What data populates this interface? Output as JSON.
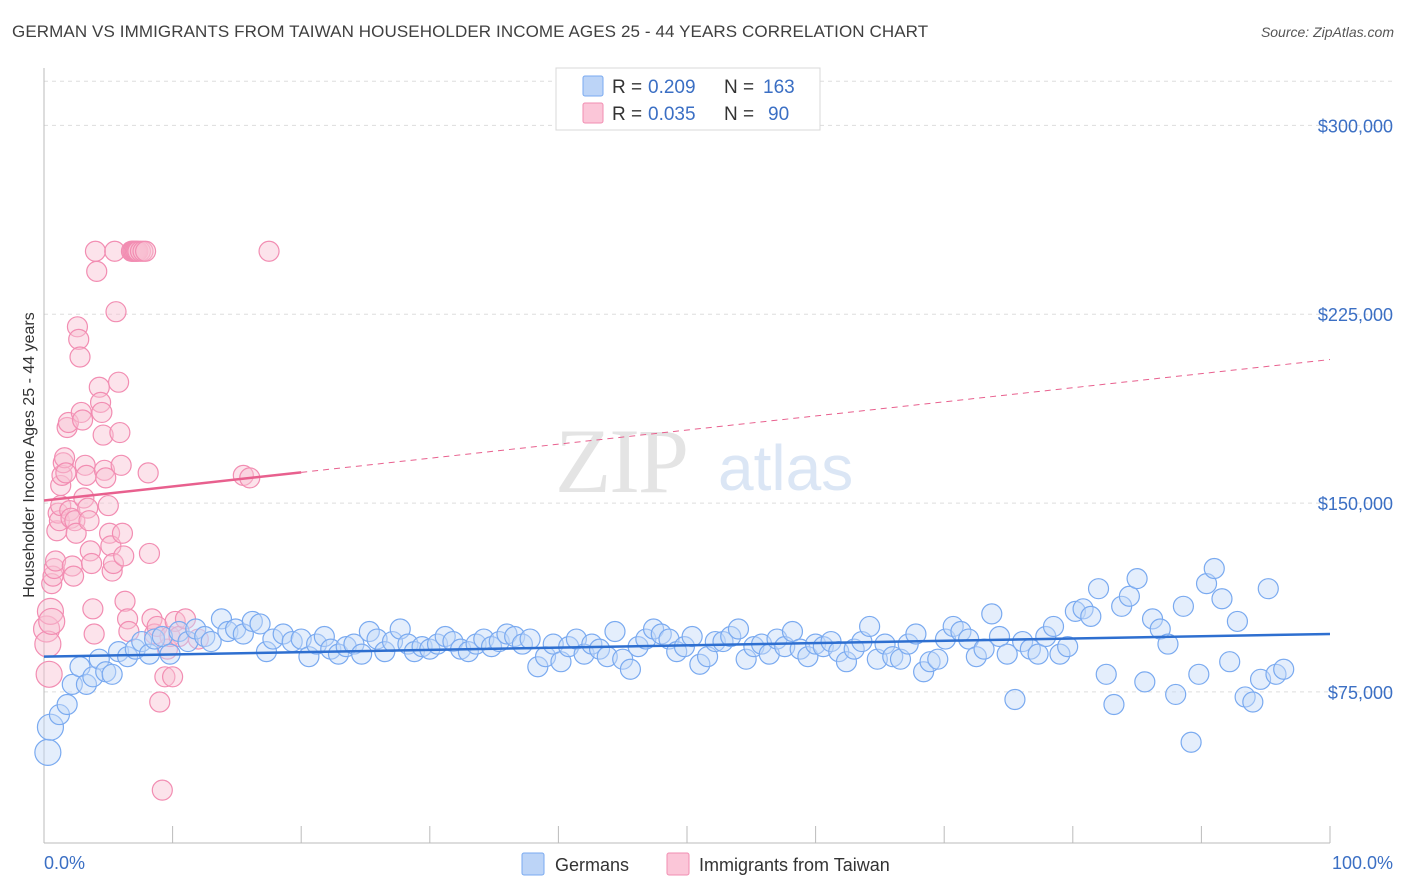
{
  "header": {
    "title": "GERMAN VS IMMIGRANTS FROM TAIWAN HOUSEHOLDER INCOME AGES 25 - 44 YEARS CORRELATION CHART",
    "source": "Source: ZipAtlas.com"
  },
  "colors": {
    "blue": "#7aaaf0",
    "blue_line": "#2e6fd0",
    "pink": "#f28db2",
    "pink_line": "#e8608e",
    "grid": "#dddddd",
    "tick_text": "#3b6fc4"
  },
  "watermark": {
    "zip": "ZIP",
    "atlas": "atlas"
  },
  "legend": {
    "r_label": "R =",
    "n_label": "N =",
    "blue": {
      "r": "0.209",
      "n": "163"
    },
    "pink": {
      "r": "0.035",
      "n": "90"
    }
  },
  "chart_data": {
    "type": "scatter",
    "title": "GERMAN VS IMMIGRANTS FROM TAIWAN HOUSEHOLDER INCOME AGES 25 - 44 YEARS CORRELATION CHART",
    "xlabel": "",
    "ylabel": "Householder Income Ages 25 - 44 years",
    "xlim": [
      0,
      100
    ],
    "ylim": [
      15000,
      320000
    ],
    "x_tick_labels": [
      "0.0%",
      "100.0%"
    ],
    "y_ticks": [
      75000,
      150000,
      225000,
      300000
    ],
    "y_tick_labels": [
      "$75,000",
      "$150,000",
      "$225,000",
      "$300,000"
    ],
    "grid": true,
    "legend_position": "top-center",
    "series": [
      {
        "name": "Germans",
        "color": "#7aaaf0",
        "trend": {
          "x": [
            0,
            100
          ],
          "y": [
            89000,
            98000
          ],
          "style": "solid"
        },
        "points": [
          [
            0.3,
            51000
          ],
          [
            0.5,
            61000
          ],
          [
            1.2,
            66000
          ],
          [
            1.8,
            70000
          ],
          [
            2.2,
            78000
          ],
          [
            2.8,
            85000
          ],
          [
            3.3,
            78000
          ],
          [
            3.8,
            81000
          ],
          [
            4.3,
            88000
          ],
          [
            4.8,
            83000
          ],
          [
            5.3,
            82000
          ],
          [
            5.8,
            91000
          ],
          [
            6.5,
            89000
          ],
          [
            7.1,
            92000
          ],
          [
            7.6,
            95000
          ],
          [
            8.2,
            90000
          ],
          [
            8.6,
            96000
          ],
          [
            9.2,
            97000
          ],
          [
            9.8,
            90000
          ],
          [
            10.5,
            99000
          ],
          [
            11.2,
            95000
          ],
          [
            11.8,
            100000
          ],
          [
            12.5,
            97000
          ],
          [
            13.0,
            95000
          ],
          [
            13.8,
            104000
          ],
          [
            14.3,
            99000
          ],
          [
            14.9,
            100000
          ],
          [
            15.5,
            98000
          ],
          [
            16.2,
            103000
          ],
          [
            16.8,
            102000
          ],
          [
            17.3,
            91000
          ],
          [
            17.8,
            96000
          ],
          [
            18.6,
            98000
          ],
          [
            19.3,
            95000
          ],
          [
            20.0,
            96000
          ],
          [
            20.6,
            89000
          ],
          [
            21.2,
            94000
          ],
          [
            21.8,
            97000
          ],
          [
            22.3,
            92000
          ],
          [
            22.9,
            90000
          ],
          [
            23.5,
            93000
          ],
          [
            24.1,
            94000
          ],
          [
            24.7,
            90000
          ],
          [
            25.3,
            99000
          ],
          [
            25.9,
            96000
          ],
          [
            26.5,
            91000
          ],
          [
            27.1,
            95000
          ],
          [
            27.7,
            100000
          ],
          [
            28.3,
            94000
          ],
          [
            28.8,
            91000
          ],
          [
            29.4,
            93000
          ],
          [
            30.0,
            92000
          ],
          [
            30.6,
            94000
          ],
          [
            31.2,
            97000
          ],
          [
            31.8,
            95000
          ],
          [
            32.4,
            92000
          ],
          [
            33.0,
            91000
          ],
          [
            33.6,
            94000
          ],
          [
            34.2,
            96000
          ],
          [
            34.8,
            93000
          ],
          [
            35.4,
            95000
          ],
          [
            36.0,
            98000
          ],
          [
            36.6,
            97000
          ],
          [
            37.2,
            94000
          ],
          [
            37.8,
            96000
          ],
          [
            38.4,
            85000
          ],
          [
            39.0,
            89000
          ],
          [
            39.6,
            94000
          ],
          [
            40.2,
            87000
          ],
          [
            40.8,
            93000
          ],
          [
            41.4,
            96000
          ],
          [
            42.0,
            90000
          ],
          [
            42.6,
            94000
          ],
          [
            43.2,
            92000
          ],
          [
            43.8,
            89000
          ],
          [
            44.4,
            99000
          ],
          [
            45.0,
            88000
          ],
          [
            45.6,
            84000
          ],
          [
            46.2,
            93000
          ],
          [
            46.8,
            96000
          ],
          [
            47.4,
            100000
          ],
          [
            48.0,
            98000
          ],
          [
            48.6,
            96000
          ],
          [
            49.2,
            91000
          ],
          [
            49.8,
            93000
          ],
          [
            50.4,
            97000
          ],
          [
            51.0,
            86000
          ],
          [
            51.6,
            89000
          ],
          [
            52.2,
            95000
          ],
          [
            52.8,
            95000
          ],
          [
            53.4,
            97000
          ],
          [
            54.0,
            100000
          ],
          [
            54.6,
            88000
          ],
          [
            55.2,
            93000
          ],
          [
            55.8,
            94000
          ],
          [
            56.4,
            90000
          ],
          [
            57.0,
            96000
          ],
          [
            57.6,
            93000
          ],
          [
            58.2,
            99000
          ],
          [
            58.8,
            92000
          ],
          [
            59.4,
            89000
          ],
          [
            60.0,
            94000
          ],
          [
            60.6,
            93000
          ],
          [
            61.2,
            95000
          ],
          [
            61.8,
            91000
          ],
          [
            62.4,
            87000
          ],
          [
            63.0,
            92000
          ],
          [
            63.6,
            95000
          ],
          [
            64.2,
            101000
          ],
          [
            64.8,
            88000
          ],
          [
            65.4,
            94000
          ],
          [
            66.0,
            89000
          ],
          [
            66.6,
            88000
          ],
          [
            67.2,
            94000
          ],
          [
            67.8,
            98000
          ],
          [
            68.4,
            83000
          ],
          [
            68.9,
            87000
          ],
          [
            69.5,
            88000
          ],
          [
            70.1,
            96000
          ],
          [
            70.7,
            101000
          ],
          [
            71.3,
            99000
          ],
          [
            71.9,
            96000
          ],
          [
            72.5,
            89000
          ],
          [
            73.1,
            92000
          ],
          [
            73.7,
            106000
          ],
          [
            74.3,
            97000
          ],
          [
            74.9,
            90000
          ],
          [
            75.5,
            72000
          ],
          [
            76.1,
            95000
          ],
          [
            76.7,
            92000
          ],
          [
            77.3,
            90000
          ],
          [
            77.9,
            97000
          ],
          [
            78.5,
            101000
          ],
          [
            79.0,
            90000
          ],
          [
            79.6,
            93000
          ],
          [
            80.2,
            107000
          ],
          [
            80.8,
            108000
          ],
          [
            81.4,
            105000
          ],
          [
            82.0,
            116000
          ],
          [
            82.6,
            82000
          ],
          [
            83.2,
            70000
          ],
          [
            83.8,
            109000
          ],
          [
            84.4,
            113000
          ],
          [
            85.0,
            120000
          ],
          [
            85.6,
            79000
          ],
          [
            86.2,
            104000
          ],
          [
            86.8,
            100000
          ],
          [
            87.4,
            94000
          ],
          [
            88.0,
            74000
          ],
          [
            88.6,
            109000
          ],
          [
            89.2,
            55000
          ],
          [
            89.8,
            82000
          ],
          [
            90.4,
            118000
          ],
          [
            91.0,
            124000
          ],
          [
            91.6,
            112000
          ],
          [
            92.2,
            87000
          ],
          [
            92.8,
            103000
          ],
          [
            93.4,
            73000
          ],
          [
            94.0,
            71000
          ],
          [
            94.6,
            80000
          ],
          [
            95.2,
            116000
          ],
          [
            95.8,
            82000
          ],
          [
            96.4,
            84000
          ]
        ]
      },
      {
        "name": "Immigrants from Taiwan",
        "color": "#f28db2",
        "trend": {
          "x": [
            0,
            100
          ],
          "y": [
            151000,
            207000
          ],
          "style": "solid to 20%, dashed after"
        },
        "points": [
          [
            0.2,
            100000
          ],
          [
            0.3,
            94000
          ],
          [
            0.4,
            82000
          ],
          [
            0.5,
            107000
          ],
          [
            0.6,
            103000
          ],
          [
            0.6,
            118000
          ],
          [
            0.7,
            121000
          ],
          [
            0.8,
            124000
          ],
          [
            0.9,
            127000
          ],
          [
            1.0,
            139000
          ],
          [
            1.1,
            146000
          ],
          [
            1.2,
            143000
          ],
          [
            1.3,
            149000
          ],
          [
            1.3,
            157000
          ],
          [
            1.4,
            161000
          ],
          [
            1.5,
            166000
          ],
          [
            1.6,
            168000
          ],
          [
            1.7,
            162000
          ],
          [
            1.8,
            180000
          ],
          [
            1.9,
            182000
          ],
          [
            2.0,
            147000
          ],
          [
            2.1,
            144000
          ],
          [
            2.2,
            125000
          ],
          [
            2.3,
            121000
          ],
          [
            2.4,
            143000
          ],
          [
            2.5,
            138000
          ],
          [
            2.6,
            220000
          ],
          [
            2.7,
            215000
          ],
          [
            2.8,
            208000
          ],
          [
            2.9,
            186000
          ],
          [
            3.0,
            183000
          ],
          [
            3.1,
            152000
          ],
          [
            3.2,
            165000
          ],
          [
            3.3,
            161000
          ],
          [
            3.4,
            148000
          ],
          [
            3.5,
            143000
          ],
          [
            3.6,
            131000
          ],
          [
            3.7,
            126000
          ],
          [
            3.8,
            108000
          ],
          [
            3.9,
            98000
          ],
          [
            4.0,
            250000
          ],
          [
            4.1,
            242000
          ],
          [
            4.3,
            196000
          ],
          [
            4.4,
            190000
          ],
          [
            4.5,
            186000
          ],
          [
            4.6,
            177000
          ],
          [
            4.7,
            163000
          ],
          [
            4.8,
            160000
          ],
          [
            5.0,
            149000
          ],
          [
            5.1,
            138000
          ],
          [
            5.2,
            133000
          ],
          [
            5.3,
            123000
          ],
          [
            5.4,
            126000
          ],
          [
            5.5,
            250000
          ],
          [
            5.6,
            226000
          ],
          [
            5.8,
            198000
          ],
          [
            5.9,
            178000
          ],
          [
            6.0,
            165000
          ],
          [
            6.1,
            138000
          ],
          [
            6.2,
            129000
          ],
          [
            6.3,
            111000
          ],
          [
            6.5,
            104000
          ],
          [
            6.6,
            99000
          ],
          [
            6.8,
            250000
          ],
          [
            6.9,
            250000
          ],
          [
            7.0,
            250000
          ],
          [
            7.1,
            250000
          ],
          [
            7.2,
            250000
          ],
          [
            7.3,
            250000
          ],
          [
            7.5,
            250000
          ],
          [
            7.7,
            250000
          ],
          [
            7.9,
            250000
          ],
          [
            8.1,
            162000
          ],
          [
            8.2,
            130000
          ],
          [
            8.4,
            104000
          ],
          [
            8.6,
            98000
          ],
          [
            8.8,
            101000
          ],
          [
            9.0,
            71000
          ],
          [
            9.2,
            36000
          ],
          [
            9.4,
            81000
          ],
          [
            9.6,
            92000
          ],
          [
            9.8,
            97000
          ],
          [
            10.0,
            81000
          ],
          [
            10.2,
            103000
          ],
          [
            10.5,
            97000
          ],
          [
            11.0,
            104000
          ],
          [
            12.0,
            96000
          ],
          [
            15.5,
            161000
          ],
          [
            16.0,
            160000
          ],
          [
            17.5,
            250000
          ]
        ]
      }
    ]
  },
  "bottom_legend": {
    "blue_label": "Germans",
    "pink_label": "Immigrants from Taiwan"
  }
}
